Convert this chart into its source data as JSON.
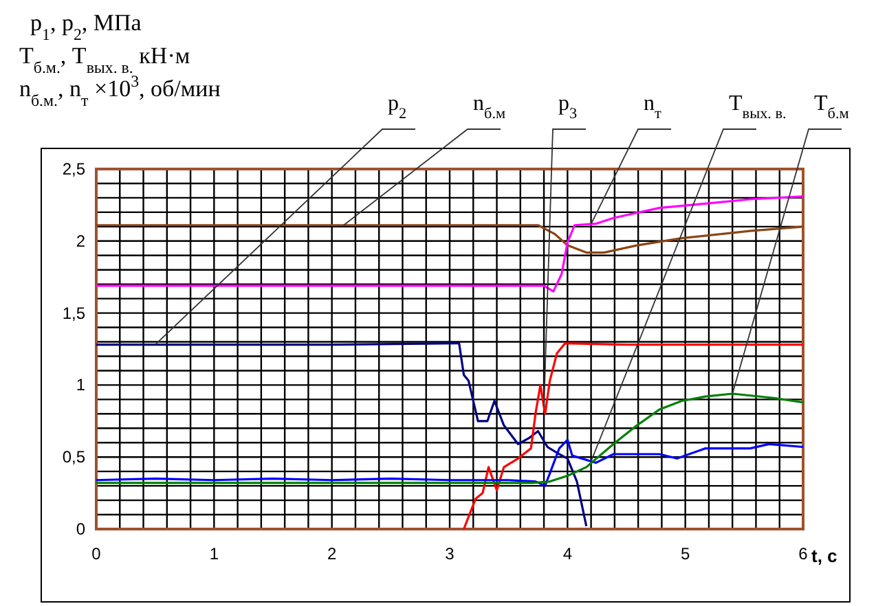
{
  "chart_data": {
    "type": "line",
    "ylabel": "p$_{1}$, p$_{2}$, МПа\nT$_{б.м.}$, T$_{вых. в.}$ кН·м\nn$_{б.м.}$, n$_{т}$ ×10$^{3}$, об/мин",
    "xlabel": "t, c",
    "xlim": [
      0,
      6
    ],
    "ylim": [
      0,
      2.5
    ],
    "xticks": [
      0,
      {
        "value": 0.2,
        "label": null
      },
      {
        "value": 0.4,
        "label": null
      },
      {
        "value": 0.6,
        "label": null
      },
      {
        "value": 0.8,
        "label": null
      },
      1,
      {
        "value": 1.2,
        "label": null
      },
      {
        "value": 1.4,
        "label": null
      },
      {
        "value": 1.6,
        "label": null
      },
      {
        "value": 1.8,
        "label": null
      },
      2,
      {
        "value": 2.2,
        "label": null
      },
      {
        "value": 2.4,
        "label": null
      },
      {
        "value": 2.6,
        "label": null
      },
      {
        "value": 2.8,
        "label": null
      },
      3,
      {
        "value": 3.2,
        "label": null
      },
      {
        "value": 3.4,
        "label": null
      },
      {
        "value": 3.6,
        "label": null
      },
      {
        "value": 3.8,
        "label": null
      },
      4,
      {
        "value": 4.2,
        "label": null
      },
      {
        "value": 4.4,
        "label": null
      },
      {
        "value": 4.6,
        "label": null
      },
      {
        "value": 4.8,
        "label": null
      },
      5,
      {
        "value": 5.2,
        "label": null
      },
      {
        "value": 5.4,
        "label": null
      },
      {
        "value": 5.6,
        "label": null
      },
      {
        "value": 5.8,
        "label": null
      },
      6
    ],
    "yticks": [
      0,
      {
        "value": 0.1,
        "label": null
      },
      {
        "value": 0.2,
        "label": null
      },
      {
        "value": 0.3,
        "label": null
      },
      {
        "value": 0.4,
        "label": null
      },
      {
        "value": 0.5,
        "label": "0,5"
      },
      {
        "value": 0.6,
        "label": null
      },
      {
        "value": 0.7,
        "label": null
      },
      {
        "value": 0.8,
        "label": null
      },
      {
        "value": 0.9,
        "label": null
      },
      1,
      {
        "value": 1.1,
        "label": null
      },
      {
        "value": 1.2,
        "label": null
      },
      {
        "value": 1.3,
        "label": null
      },
      {
        "value": 1.4,
        "label": null
      },
      {
        "value": 1.5,
        "label": "1,5"
      },
      {
        "value": 1.6,
        "label": null
      },
      {
        "value": 1.7,
        "label": null
      },
      {
        "value": 1.8,
        "label": null
      },
      {
        "value": 1.9,
        "label": null
      },
      2,
      {
        "value": 2.1,
        "label": null
      },
      {
        "value": 2.2,
        "label": null
      },
      {
        "value": 2.3,
        "label": null
      },
      {
        "value": 2.4,
        "label": null
      },
      {
        "value": 2.5,
        "label": "2,5"
      }
    ],
    "grid": true,
    "line_style": "solid",
    "series": [
      {
        "name": "p$_{2}$",
        "color": "#000080",
        "x": [
          0,
          1,
          2,
          3.05,
          3.08,
          3.12,
          3.16,
          3.24,
          3.32,
          3.38,
          3.46,
          3.58,
          3.67,
          3.75,
          3.83,
          3.93,
          4.0,
          4.08,
          4.16
        ],
        "values": [
          1.28,
          1.28,
          1.28,
          1.29,
          1.29,
          1.07,
          1.03,
          0.75,
          0.75,
          0.89,
          0.72,
          0.59,
          0.63,
          0.68,
          0.57,
          0.52,
          0.49,
          0.33,
          0.02
        ]
      },
      {
        "name": "n$_{б.м}$",
        "color": "#8b4513",
        "x": [
          0,
          1,
          2,
          3,
          3.75,
          3.89,
          4.0,
          4.16,
          4.31,
          4.59,
          4.97,
          5.55,
          6.0
        ],
        "values": [
          2.11,
          2.11,
          2.11,
          2.11,
          2.11,
          2.05,
          1.97,
          1.92,
          1.92,
          1.97,
          2.02,
          2.07,
          2.1
        ]
      },
      {
        "name": "p$_{3}$",
        "color": "#ff0000",
        "x": [
          3.12,
          3.22,
          3.28,
          3.33,
          3.4,
          3.46,
          3.58,
          3.69,
          3.73,
          3.77,
          3.81,
          3.85,
          3.91,
          3.98,
          4.5,
          5,
          5.5,
          6.0
        ],
        "values": [
          0,
          0.21,
          0.25,
          0.43,
          0.27,
          0.43,
          0.49,
          0.56,
          0.81,
          1.0,
          0.8,
          1.03,
          1.22,
          1.29,
          1.28,
          1.28,
          1.28,
          1.28
        ]
      },
      {
        "name": "n$_{т}$",
        "color": "#ff00ff",
        "x": [
          0,
          1,
          2,
          3,
          3.8,
          3.88,
          3.95,
          4.0,
          4.06,
          4.24,
          4.39,
          4.78,
          5.17,
          5.55,
          6.0
        ],
        "values": [
          1.69,
          1.69,
          1.69,
          1.69,
          1.69,
          1.65,
          1.77,
          1.99,
          2.11,
          2.12,
          2.16,
          2.23,
          2.26,
          2.29,
          2.31
        ]
      },
      {
        "name": "T$_{вых. в.}$",
        "color": "#0000ff",
        "x": [
          0,
          0.5,
          1,
          1.5,
          2,
          2.5,
          3,
          3.5,
          3.73,
          3.81,
          3.93,
          4.0,
          4.04,
          4.24,
          4.39,
          4.78,
          4.93,
          5.17,
          5.55,
          5.71,
          6.0
        ],
        "values": [
          0.34,
          0.35,
          0.34,
          0.35,
          0.34,
          0.35,
          0.34,
          0.34,
          0.33,
          0.3,
          0.56,
          0.62,
          0.51,
          0.46,
          0.52,
          0.52,
          0.49,
          0.56,
          0.56,
          0.59,
          0.57
        ]
      },
      {
        "name": "T$_{б.м}$",
        "color": "#008000",
        "x": [
          0,
          1,
          2,
          3,
          3.7,
          3.85,
          4.0,
          4.16,
          4.39,
          4.59,
          4.78,
          4.97,
          5.17,
          5.4,
          5.75,
          6.0
        ],
        "values": [
          0.32,
          0.32,
          0.32,
          0.32,
          0.32,
          0.33,
          0.37,
          0.43,
          0.59,
          0.72,
          0.83,
          0.89,
          0.92,
          0.94,
          0.91,
          0.88
        ]
      }
    ]
  }
}
